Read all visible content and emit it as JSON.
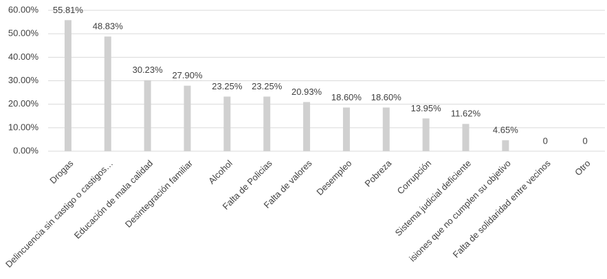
{
  "chart_data": {
    "type": "bar",
    "categories": [
      "Drogas",
      "Delincuencia sin castigo o castigos…",
      "Educación de mala calidad",
      "Desintegración familiar",
      "Alcohol",
      "Falta de Policias",
      "Falta de valores",
      "Desempleo",
      "Pobreza",
      "Corrupción",
      "Sistema judicial deficiente",
      "isiones que no cumplen su objetivo",
      "Falta de solidaridad entre vecinos",
      "Otro"
    ],
    "values": [
      55.81,
      48.83,
      30.23,
      27.9,
      23.25,
      23.25,
      20.93,
      18.6,
      18.6,
      13.95,
      11.62,
      4.65,
      0,
      0
    ],
    "value_labels": [
      "55.81%",
      "48.83%",
      "30.23%",
      "27.90%",
      "23.25%",
      "23.25%",
      "20.93%",
      "18.60%",
      "18.60%",
      "13.95%",
      "11.62%",
      "4.65%",
      "0",
      "0"
    ],
    "color": "#d0d0d0",
    "ylim": [
      0,
      60
    ],
    "yticks": [
      {
        "value": 0,
        "label": "0.00%"
      },
      {
        "value": 10,
        "label": "10.00%"
      },
      {
        "value": 20,
        "label": "20.00%"
      },
      {
        "value": 30,
        "label": "30.00%"
      },
      {
        "value": 40,
        "label": "40.00%"
      },
      {
        "value": 50,
        "label": "50.00%"
      },
      {
        "value": 60,
        "label": "60.00%"
      }
    ],
    "grid": true
  }
}
